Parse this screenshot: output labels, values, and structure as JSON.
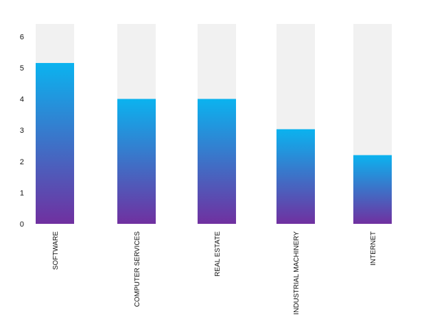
{
  "chart_data": {
    "type": "bar",
    "title": "",
    "xlabel": "",
    "ylabel": "",
    "categories": [
      "SOFTWARE",
      "COMPUTER SERVICES",
      "REAL ESTATE",
      "INDUSTRIAL MACHINERY",
      "INTERNET"
    ],
    "values": [
      5.15,
      4.0,
      4.0,
      3.03,
      2.2
    ],
    "ylim": [
      0,
      6.4
    ],
    "yticks": [
      "0",
      "1",
      "2",
      "3",
      "4",
      "5",
      "6"
    ],
    "grid": false,
    "legend": "none",
    "background_bar_color": "#f1f1f1",
    "gradient_top_color": "#0bb3ef",
    "gradient_bottom_color": "#7030a0"
  }
}
